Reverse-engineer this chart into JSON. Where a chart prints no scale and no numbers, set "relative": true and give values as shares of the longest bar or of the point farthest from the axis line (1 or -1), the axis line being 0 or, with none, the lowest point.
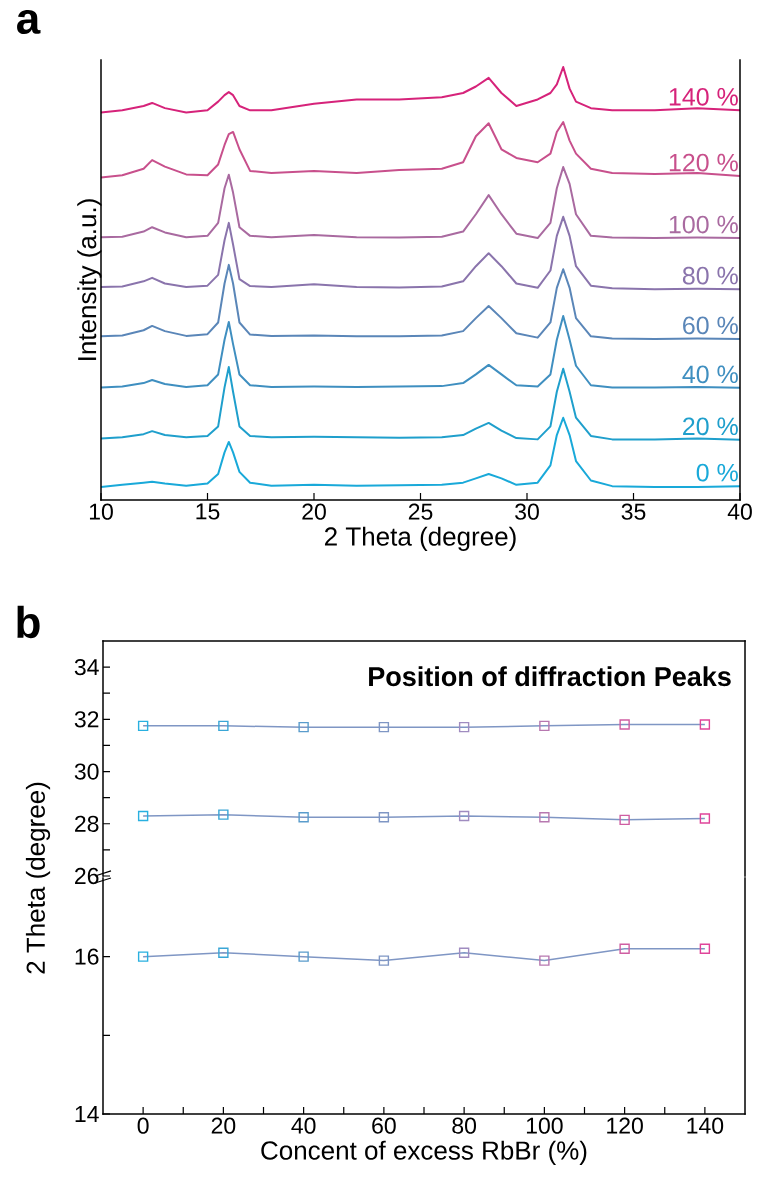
{
  "chart_data": [
    {
      "type": "line",
      "relative": true,
      "xlabel": "2 Theta (degree)",
      "ylabel": "Intensity (a.u.)",
      "annotations": [
        "a"
      ],
      "xlim": [
        10,
        40
      ],
      "xticks": [
        10,
        15,
        20,
        25,
        30,
        35,
        40
      ],
      "x": [
        10,
        11,
        12,
        12.4,
        13,
        14,
        15,
        15.5,
        15.8,
        16,
        16.2,
        16.5,
        17,
        18,
        20,
        22,
        24,
        26,
        27,
        27.6,
        28.2,
        28.8,
        29.5,
        30.5,
        31.1,
        31.4,
        31.7,
        32,
        32.3,
        33,
        34,
        36,
        38,
        40
      ],
      "series": [
        {
          "name": "0 %",
          "color": "#19a9d9",
          "values": [
            0.03,
            0.035,
            0.04,
            0.042,
            0.038,
            0.033,
            0.038,
            0.06,
            0.11,
            0.134,
            0.11,
            0.065,
            0.04,
            0.033,
            0.035,
            0.033,
            0.034,
            0.035,
            0.04,
            0.05,
            0.06,
            0.05,
            0.035,
            0.04,
            0.08,
            0.15,
            0.19,
            0.15,
            0.09,
            0.045,
            0.032,
            0.03,
            0.03,
            0.032
          ]
        },
        {
          "name": "20 %",
          "color": "#1f9fcc",
          "values": [
            0.142,
            0.145,
            0.152,
            0.159,
            0.15,
            0.145,
            0.148,
            0.17,
            0.26,
            0.307,
            0.25,
            0.17,
            0.148,
            0.145,
            0.146,
            0.145,
            0.144,
            0.145,
            0.15,
            0.165,
            0.178,
            0.16,
            0.143,
            0.14,
            0.17,
            0.25,
            0.303,
            0.25,
            0.19,
            0.148,
            0.14,
            0.14,
            0.142,
            0.139
          ]
        },
        {
          "name": "40 %",
          "color": "#3f8fc0",
          "values": [
            0.26,
            0.262,
            0.27,
            0.277,
            0.268,
            0.261,
            0.265,
            0.29,
            0.37,
            0.411,
            0.36,
            0.29,
            0.265,
            0.261,
            0.262,
            0.261,
            0.262,
            0.263,
            0.27,
            0.29,
            0.312,
            0.29,
            0.265,
            0.262,
            0.29,
            0.37,
            0.425,
            0.37,
            0.31,
            0.265,
            0.26,
            0.26,
            0.261,
            0.259
          ]
        },
        {
          "name": "60 %",
          "color": "#5a86b8",
          "values": [
            0.378,
            0.38,
            0.392,
            0.402,
            0.39,
            0.379,
            0.383,
            0.41,
            0.5,
            0.543,
            0.5,
            0.41,
            0.382,
            0.379,
            0.38,
            0.378,
            0.378,
            0.38,
            0.39,
            0.42,
            0.448,
            0.42,
            0.385,
            0.375,
            0.41,
            0.49,
            0.533,
            0.49,
            0.42,
            0.378,
            0.373,
            0.372,
            0.373,
            0.372
          ]
        },
        {
          "name": "80 %",
          "color": "#8a74ac",
          "values": [
            0.492,
            0.493,
            0.505,
            0.513,
            0.5,
            0.492,
            0.495,
            0.52,
            0.6,
            0.64,
            0.59,
            0.51,
            0.494,
            0.492,
            0.498,
            0.492,
            0.491,
            0.493,
            0.505,
            0.54,
            0.57,
            0.54,
            0.5,
            0.49,
            0.53,
            0.61,
            0.654,
            0.61,
            0.54,
            0.495,
            0.489,
            0.487,
            0.488,
            0.487
          ]
        },
        {
          "name": "100 %",
          "color": "#a96aa0",
          "values": [
            0.607,
            0.608,
            0.62,
            0.63,
            0.618,
            0.607,
            0.61,
            0.64,
            0.72,
            0.751,
            0.71,
            0.63,
            0.61,
            0.607,
            0.612,
            0.607,
            0.606,
            0.608,
            0.62,
            0.66,
            0.704,
            0.66,
            0.615,
            0.605,
            0.64,
            0.72,
            0.769,
            0.73,
            0.66,
            0.61,
            0.606,
            0.605,
            0.606,
            0.605
          ]
        },
        {
          "name": "120 %",
          "color": "#c8508c",
          "values": [
            0.745,
            0.75,
            0.765,
            0.785,
            0.77,
            0.752,
            0.75,
            0.775,
            0.82,
            0.845,
            0.85,
            0.81,
            0.76,
            0.755,
            0.76,
            0.755,
            0.762,
            0.765,
            0.78,
            0.84,
            0.87,
            0.81,
            0.79,
            0.78,
            0.8,
            0.85,
            0.873,
            0.83,
            0.8,
            0.765,
            0.755,
            0.753,
            0.755,
            0.748
          ]
        },
        {
          "name": "140 %",
          "color": "#d6237a",
          "values": [
            0.895,
            0.9,
            0.91,
            0.917,
            0.905,
            0.895,
            0.9,
            0.92,
            0.935,
            0.942,
            0.935,
            0.91,
            0.9,
            0.9,
            0.915,
            0.925,
            0.925,
            0.93,
            0.94,
            0.955,
            0.975,
            0.94,
            0.91,
            0.925,
            0.94,
            0.96,
            1.0,
            0.95,
            0.92,
            0.905,
            0.9,
            0.9,
            0.905,
            0.9
          ]
        }
      ]
    },
    {
      "type": "line",
      "marker": "square",
      "title": "Position of diffraction Peaks",
      "annotations": [
        "b"
      ],
      "tick_labels": "y",
      "x": [
        0,
        20,
        40,
        60,
        80,
        100,
        120,
        140
      ],
      "xlim": [
        -10,
        150
      ],
      "ylim": [
        26,
        35
      ],
      "yticks": [
        26,
        {
          "value": 27,
          "label": null
        },
        28,
        {
          "value": 29,
          "label": null
        },
        30,
        {
          "value": 31,
          "label": null
        },
        32,
        {
          "value": 33,
          "label": null
        },
        34
      ],
      "series": [
        {
          "color": "#7f96c4",
          "colors": [
            "#29b0e0",
            "#3aa6d6",
            "#5a9ccc",
            "#7f96c4",
            "#a08cc0",
            "#b778b0",
            "#cf5ea2",
            "#e0449a"
          ],
          "values": [
            31.75,
            31.75,
            31.7,
            31.7,
            31.7,
            31.75,
            31.8,
            31.8
          ]
        },
        {
          "color": "#7f96c4",
          "colors": [
            "#29b0e0",
            "#3aa6d6",
            "#5a9ccc",
            "#7f96c4",
            "#a08cc0",
            "#b778b0",
            "#cf5ea2",
            "#e0449a"
          ],
          "values": [
            28.3,
            28.35,
            28.25,
            28.25,
            28.3,
            28.25,
            28.15,
            28.2
          ]
        }
      ]
    },
    {
      "type": "line",
      "marker": "square",
      "xlabel": "Concent of excess RbBr (%)",
      "ylabel": "2 Theta (degree)",
      "x": [
        0,
        20,
        40,
        60,
        80,
        100,
        120,
        140
      ],
      "xlim": [
        -10,
        150
      ],
      "ylim": [
        14,
        17
      ],
      "xticks": [
        0,
        {
          "value": 10,
          "label": null
        },
        20,
        {
          "value": 30,
          "label": null
        },
        40,
        {
          "value": 50,
          "label": null
        },
        60,
        {
          "value": 70,
          "label": null
        },
        80,
        {
          "value": 90,
          "label": null
        },
        100,
        {
          "value": 110,
          "label": null
        },
        120,
        {
          "value": 130,
          "label": null
        },
        140
      ],
      "yticks": [
        14,
        {
          "value": 15,
          "label": null
        },
        16
      ],
      "series": [
        {
          "color": "#7f96c4",
          "colors": [
            "#29b0e0",
            "#3aa6d6",
            "#5a9ccc",
            "#7f96c4",
            "#a08cc0",
            "#b778b0",
            "#cf5ea2",
            "#e0449a"
          ],
          "values": [
            16.0,
            16.05,
            16.0,
            15.95,
            16.05,
            15.95,
            16.1,
            16.1
          ]
        }
      ]
    }
  ]
}
